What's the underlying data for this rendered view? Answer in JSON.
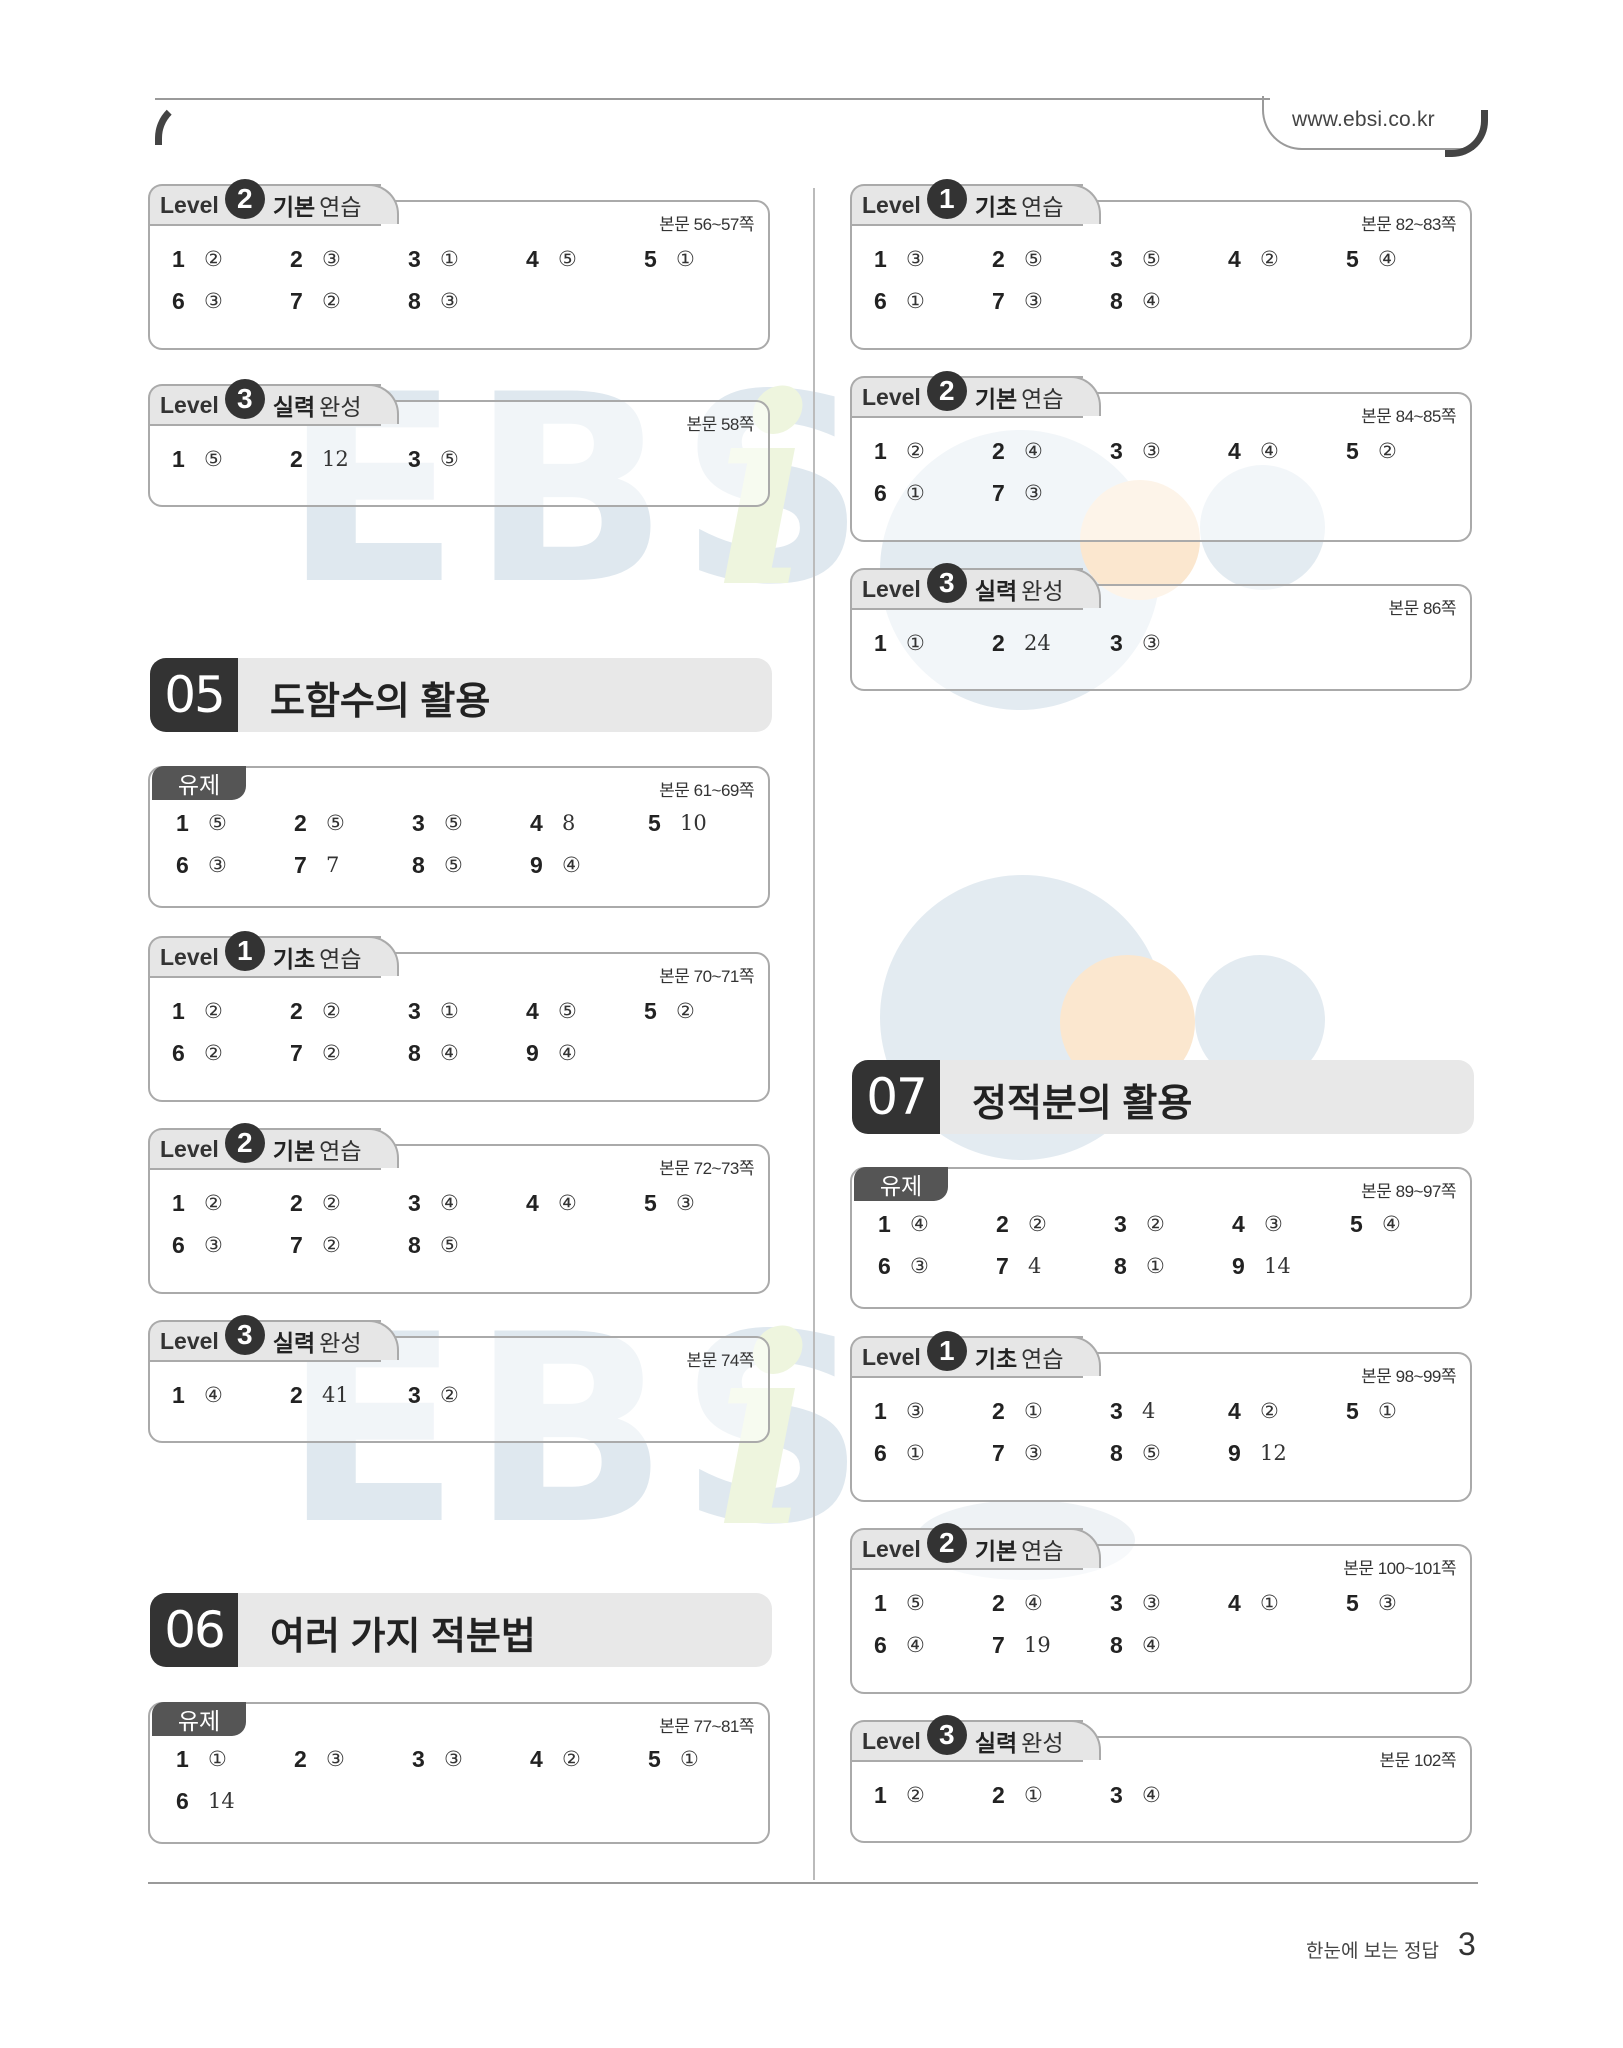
{
  "header": {
    "url": "www.ebsi.co.kr"
  },
  "watermark": {
    "text": "EBS",
    "i": "i"
  },
  "sections": {
    "lvl2_a": {
      "level": "2",
      "b": "기본",
      "r": "연습",
      "pages": "본문 56~57쪽",
      "rows": [
        [
          [
            "1",
            "②"
          ],
          [
            "2",
            "③"
          ],
          [
            "3",
            "①"
          ],
          [
            "4",
            "⑤"
          ],
          [
            "5",
            "①"
          ]
        ],
        [
          [
            "6",
            "③"
          ],
          [
            "7",
            "②"
          ],
          [
            "8",
            "③"
          ]
        ]
      ]
    },
    "lvl3_a": {
      "level": "3",
      "b": "실력",
      "r": "완성",
      "pages": "본문 58쪽",
      "rows": [
        [
          [
            "1",
            "⑤"
          ],
          [
            "2",
            "12"
          ],
          [
            "3",
            "⑤"
          ]
        ]
      ]
    },
    "ch05": {
      "num": "05",
      "title": "도함수의 활용"
    },
    "yuje05": {
      "label": "유제",
      "pages": "본문 61~69쪽",
      "rows": [
        [
          [
            "1",
            "⑤"
          ],
          [
            "2",
            "⑤"
          ],
          [
            "3",
            "⑤"
          ],
          [
            "4",
            "8"
          ],
          [
            "5",
            "10"
          ]
        ],
        [
          [
            "6",
            "③"
          ],
          [
            "7",
            "7"
          ],
          [
            "8",
            "⑤"
          ],
          [
            "9",
            "④"
          ]
        ]
      ]
    },
    "lvl1_05": {
      "level": "1",
      "b": "기초",
      "r": "연습",
      "pages": "본문 70~71쪽",
      "rows": [
        [
          [
            "1",
            "②"
          ],
          [
            "2",
            "②"
          ],
          [
            "3",
            "①"
          ],
          [
            "4",
            "⑤"
          ],
          [
            "5",
            "②"
          ]
        ],
        [
          [
            "6",
            "②"
          ],
          [
            "7",
            "②"
          ],
          [
            "8",
            "④"
          ],
          [
            "9",
            "④"
          ]
        ]
      ]
    },
    "lvl2_05": {
      "level": "2",
      "b": "기본",
      "r": "연습",
      "pages": "본문 72~73쪽",
      "rows": [
        [
          [
            "1",
            "②"
          ],
          [
            "2",
            "②"
          ],
          [
            "3",
            "④"
          ],
          [
            "4",
            "④"
          ],
          [
            "5",
            "③"
          ]
        ],
        [
          [
            "6",
            "③"
          ],
          [
            "7",
            "②"
          ],
          [
            "8",
            "⑤"
          ]
        ]
      ]
    },
    "lvl3_05": {
      "level": "3",
      "b": "실력",
      "r": "완성",
      "pages": "본문 74쪽",
      "rows": [
        [
          [
            "1",
            "④"
          ],
          [
            "2",
            "41"
          ],
          [
            "3",
            "②"
          ]
        ]
      ]
    },
    "ch06": {
      "num": "06",
      "title": "여러 가지 적분법"
    },
    "yuje06": {
      "label": "유제",
      "pages": "본문 77~81쪽",
      "rows": [
        [
          [
            "1",
            "①"
          ],
          [
            "2",
            "③"
          ],
          [
            "3",
            "③"
          ],
          [
            "4",
            "②"
          ],
          [
            "5",
            "①"
          ]
        ],
        [
          [
            "6",
            "14"
          ]
        ]
      ]
    },
    "lvl1_r": {
      "level": "1",
      "b": "기초",
      "r": "연습",
      "pages": "본문 82~83쪽",
      "rows": [
        [
          [
            "1",
            "③"
          ],
          [
            "2",
            "⑤"
          ],
          [
            "3",
            "⑤"
          ],
          [
            "4",
            "②"
          ],
          [
            "5",
            "④"
          ]
        ],
        [
          [
            "6",
            "①"
          ],
          [
            "7",
            "③"
          ],
          [
            "8",
            "④"
          ]
        ]
      ]
    },
    "lvl2_r": {
      "level": "2",
      "b": "기본",
      "r": "연습",
      "pages": "본문 84~85쪽",
      "rows": [
        [
          [
            "1",
            "②"
          ],
          [
            "2",
            "④"
          ],
          [
            "3",
            "③"
          ],
          [
            "4",
            "④"
          ],
          [
            "5",
            "②"
          ]
        ],
        [
          [
            "6",
            "①"
          ],
          [
            "7",
            "③"
          ]
        ]
      ]
    },
    "lvl3_r": {
      "level": "3",
      "b": "실력",
      "r": "완성",
      "pages": "본문 86쪽",
      "rows": [
        [
          [
            "1",
            "①"
          ],
          [
            "2",
            "24"
          ],
          [
            "3",
            "③"
          ]
        ]
      ]
    },
    "ch07": {
      "num": "07",
      "title": "정적분의 활용"
    },
    "yuje07": {
      "label": "유제",
      "pages": "본문 89~97쪽",
      "rows": [
        [
          [
            "1",
            "④"
          ],
          [
            "2",
            "②"
          ],
          [
            "3",
            "②"
          ],
          [
            "4",
            "③"
          ],
          [
            "5",
            "④"
          ]
        ],
        [
          [
            "6",
            "③"
          ],
          [
            "7",
            "4"
          ],
          [
            "8",
            "①"
          ],
          [
            "9",
            "14"
          ]
        ]
      ]
    },
    "lvl1_07": {
      "level": "1",
      "b": "기초",
      "r": "연습",
      "pages": "본문 98~99쪽",
      "rows": [
        [
          [
            "1",
            "③"
          ],
          [
            "2",
            "①"
          ],
          [
            "3",
            "4"
          ],
          [
            "4",
            "②"
          ],
          [
            "5",
            "①"
          ]
        ],
        [
          [
            "6",
            "①"
          ],
          [
            "7",
            "③"
          ],
          [
            "8",
            "⑤"
          ],
          [
            "9",
            "12"
          ]
        ]
      ]
    },
    "lvl2_07": {
      "level": "2",
      "b": "기본",
      "r": "연습",
      "pages": "본문 100~101쪽",
      "rows": [
        [
          [
            "1",
            "⑤"
          ],
          [
            "2",
            "④"
          ],
          [
            "3",
            "③"
          ],
          [
            "4",
            "①"
          ],
          [
            "5",
            "③"
          ]
        ],
        [
          [
            "6",
            "④"
          ],
          [
            "7",
            "19"
          ],
          [
            "8",
            "④"
          ]
        ]
      ]
    },
    "lvl3_07": {
      "level": "3",
      "b": "실력",
      "r": "완성",
      "pages": "본문 102쪽",
      "rows": [
        [
          [
            "1",
            "②"
          ],
          [
            "2",
            "①"
          ],
          [
            "3",
            "④"
          ]
        ]
      ]
    }
  },
  "footer": {
    "label": "한눈에 보는 정답",
    "page": "3"
  },
  "colors": {
    "dark": "#333333",
    "tab_bg": "#e6e6e6",
    "watermark_blue": "#dfe8ef",
    "watermark_green": "#eef5de",
    "watermark_orange": "#fbe7cf"
  }
}
